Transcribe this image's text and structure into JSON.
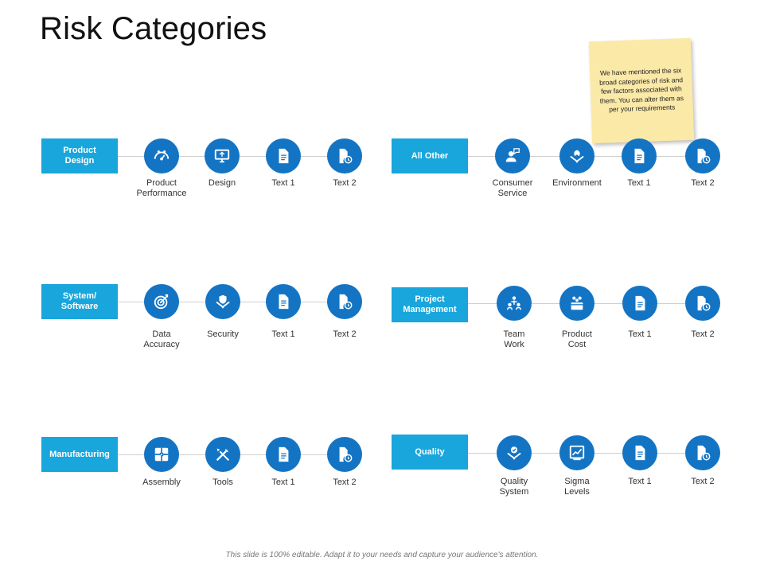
{
  "title": "Risk Categories",
  "note": "We have mentioned the six broad categories of risk and few factors associated with them. You can alter them as per your requirements",
  "footer": "This slide is 100% editable. Adapt it to your needs and capture your audience's attention.",
  "colors": {
    "category": "#18a6dc",
    "circle": "#1474c4",
    "note": "#fbe9a8"
  },
  "groups": [
    {
      "category": "Product\nDesign",
      "items": [
        {
          "label": "Product\nPerformance",
          "icon": "gauge-icon"
        },
        {
          "label": "Design",
          "icon": "monitor-icon"
        },
        {
          "label": "Text 1",
          "icon": "document-icon"
        },
        {
          "label": "Text 2",
          "icon": "file-clock-icon"
        }
      ]
    },
    {
      "category": "All Other",
      "items": [
        {
          "label": "Consumer\nService",
          "icon": "support-agent-icon"
        },
        {
          "label": "Environment",
          "icon": "leaf-hands-icon"
        },
        {
          "label": "Text 1",
          "icon": "document-icon"
        },
        {
          "label": "Text 2",
          "icon": "file-clock-icon"
        }
      ]
    },
    {
      "category": "System/\nSoftware",
      "items": [
        {
          "label": "Data\nAccuracy",
          "icon": "target-icon"
        },
        {
          "label": "Security",
          "icon": "shield-hands-icon"
        },
        {
          "label": "Text 1",
          "icon": "document-icon"
        },
        {
          "label": "Text 2",
          "icon": "file-clock-icon"
        }
      ]
    },
    {
      "category": "Project\nManagement",
      "items": [
        {
          "label": "Team\nWork",
          "icon": "team-icon"
        },
        {
          "label": "Product\nCost",
          "icon": "box-coins-icon"
        },
        {
          "label": "Text 1",
          "icon": "document-icon"
        },
        {
          "label": "Text 2",
          "icon": "file-clock-icon"
        }
      ]
    },
    {
      "category": "Manufacturing",
      "items": [
        {
          "label": "Assembly",
          "icon": "puzzle-icon"
        },
        {
          "label": "Tools",
          "icon": "tools-icon"
        },
        {
          "label": "Text 1",
          "icon": "document-icon"
        },
        {
          "label": "Text 2",
          "icon": "file-clock-icon"
        }
      ]
    },
    {
      "category": "Quality",
      "items": [
        {
          "label": "Quality\nSystem",
          "icon": "quality-hands-icon"
        },
        {
          "label": "Sigma\nLevels",
          "icon": "chart-board-icon"
        },
        {
          "label": "Text 1",
          "icon": "document-icon"
        },
        {
          "label": "Text 2",
          "icon": "file-clock-icon"
        }
      ]
    }
  ]
}
